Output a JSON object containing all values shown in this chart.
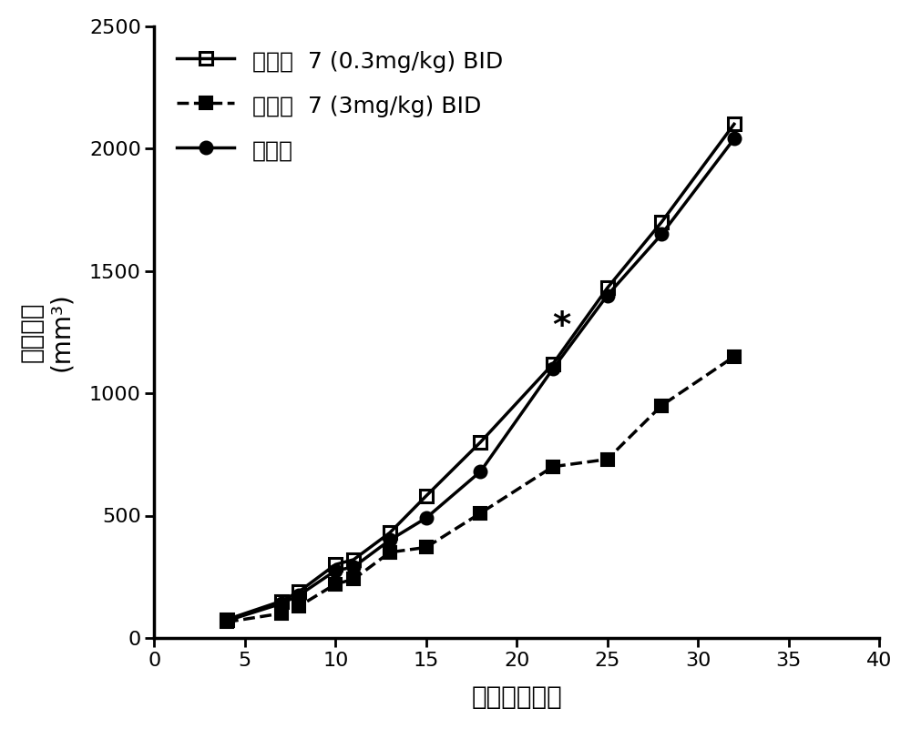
{
  "series": [
    {
      "label": "化合物  7 (0.3mg/kg) BID",
      "x": [
        4,
        7,
        8,
        10,
        11,
        13,
        15,
        18,
        22,
        25,
        28,
        32
      ],
      "y": [
        75,
        150,
        190,
        300,
        320,
        430,
        580,
        800,
        1120,
        1430,
        1700,
        2100
      ],
      "color": "#000000",
      "linestyle": "solid",
      "marker": "s",
      "fillstyle": "none",
      "linewidth": 2.5,
      "markersize": 10
    },
    {
      "label": "化合物  7 (3mg/kg) BID",
      "x": [
        4,
        7,
        8,
        10,
        11,
        13,
        15,
        18,
        22,
        25,
        28,
        32
      ],
      "y": [
        65,
        100,
        130,
        220,
        240,
        350,
        370,
        510,
        700,
        730,
        950,
        1150
      ],
      "color": "#000000",
      "linestyle": "dashed",
      "marker": "s",
      "fillstyle": "full",
      "linewidth": 2.5,
      "markersize": 10
    },
    {
      "label": "媒介物",
      "x": [
        4,
        7,
        8,
        10,
        11,
        13,
        15,
        18,
        22,
        25,
        28,
        32
      ],
      "y": [
        70,
        140,
        175,
        275,
        290,
        400,
        490,
        680,
        1100,
        1400,
        1650,
        2040
      ],
      "color": "#000000",
      "linestyle": "solid",
      "marker": "o",
      "fillstyle": "full",
      "linewidth": 2.5,
      "markersize": 10
    }
  ],
  "xlim": [
    2,
    40
  ],
  "ylim": [
    0,
    2500
  ],
  "xticks": [
    0,
    5,
    10,
    15,
    20,
    25,
    30,
    35,
    40
  ],
  "yticks": [
    0,
    500,
    1000,
    1500,
    2000,
    2500
  ],
  "xlabel": "接种后的天数",
  "ylabel_line1": "肿瘤体积",
  "ylabel_line2": "(mm³)",
  "star_x": 22.5,
  "star_y": 1270,
  "background_color": "#ffffff",
  "label_fontsize": 20,
  "tick_fontsize": 16,
  "legend_fontsize": 18,
  "star_fontsize": 28
}
